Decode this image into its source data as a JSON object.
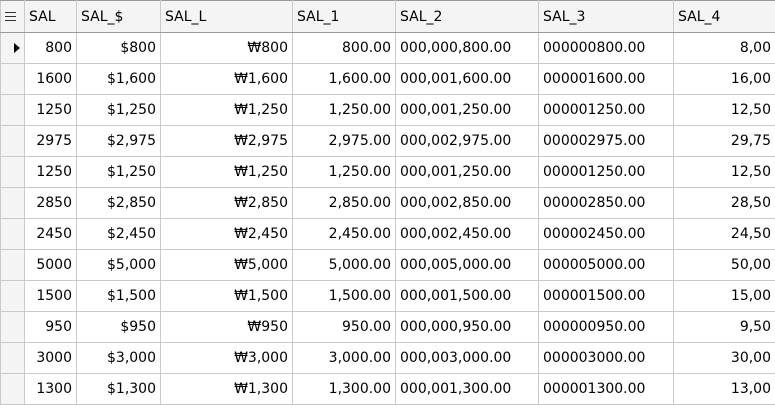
{
  "grid": {
    "columns": [
      {
        "key": "SAL",
        "label": "SAL"
      },
      {
        "key": "SAL_$",
        "label": "SAL_$"
      },
      {
        "key": "SAL_L",
        "label": "SAL_L"
      },
      {
        "key": "SAL_1",
        "label": "SAL_1"
      },
      {
        "key": "SAL_2",
        "label": "SAL_2"
      },
      {
        "key": "SAL_3",
        "label": "SAL_3"
      },
      {
        "key": "SAL_4",
        "label": "SAL_4"
      }
    ],
    "current_row": 0,
    "rows": [
      [
        "800",
        "$800",
        "₩800",
        "800.00",
        "000,000,800.00",
        "000000800.00",
        "8,00"
      ],
      [
        "1600",
        "$1,600",
        "₩1,600",
        "1,600.00",
        "000,001,600.00",
        "000001600.00",
        "16,00"
      ],
      [
        "1250",
        "$1,250",
        "₩1,250",
        "1,250.00",
        "000,001,250.00",
        "000001250.00",
        "12,50"
      ],
      [
        "2975",
        "$2,975",
        "₩2,975",
        "2,975.00",
        "000,002,975.00",
        "000002975.00",
        "29,75"
      ],
      [
        "1250",
        "$1,250",
        "₩1,250",
        "1,250.00",
        "000,001,250.00",
        "000001250.00",
        "12,50"
      ],
      [
        "2850",
        "$2,850",
        "₩2,850",
        "2,850.00",
        "000,002,850.00",
        "000002850.00",
        "28,50"
      ],
      [
        "2450",
        "$2,450",
        "₩2,450",
        "2,450.00",
        "000,002,450.00",
        "000002450.00",
        "24,50"
      ],
      [
        "5000",
        "$5,000",
        "₩5,000",
        "5,000.00",
        "000,005,000.00",
        "000005000.00",
        "50,00"
      ],
      [
        "1500",
        "$1,500",
        "₩1,500",
        "1,500.00",
        "000,001,500.00",
        "000001500.00",
        "15,00"
      ],
      [
        "950",
        "$950",
        "₩950",
        "950.00",
        "000,000,950.00",
        "000000950.00",
        "9,50"
      ],
      [
        "3000",
        "$3,000",
        "₩3,000",
        "3,000.00",
        "000,003,000.00",
        "000003000.00",
        "30,00"
      ],
      [
        "1300",
        "$1,300",
        "₩1,300",
        "1,300.00",
        "000,001,300.00",
        "000001300.00",
        "13,00"
      ]
    ]
  }
}
